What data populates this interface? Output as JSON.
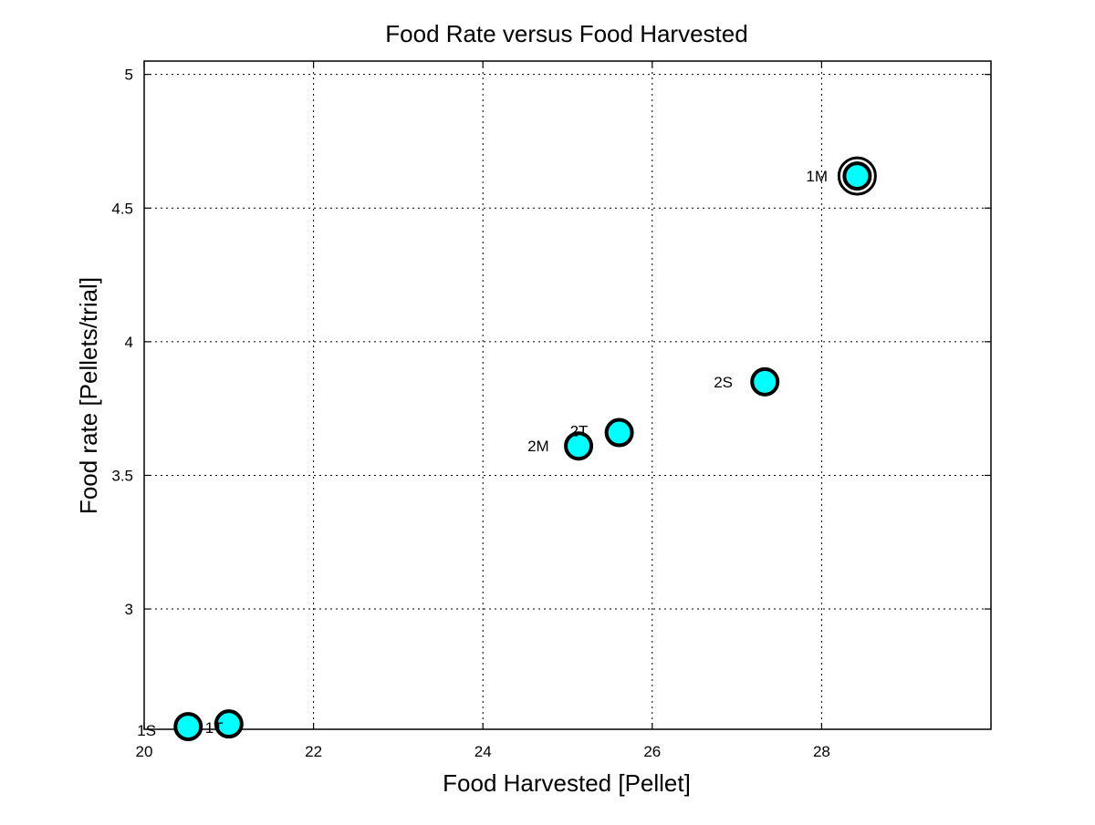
{
  "chart_data": {
    "type": "scatter",
    "title": "Food Rate versus Food Harvested",
    "xlabel": "Food Harvested [Pellet]",
    "ylabel": "Food rate [Pellets/trial]",
    "xlim": [
      20,
      30
    ],
    "ylim": [
      2.55,
      5.05
    ],
    "xticks": [
      20,
      22,
      24,
      26,
      28
    ],
    "xtick_labels": [
      "20",
      "22",
      "24",
      "26",
      "28"
    ],
    "yticks": [
      3,
      3.5,
      4,
      4.5,
      5
    ],
    "ytick_labels": [
      "3",
      "3.5",
      "4",
      "4.5",
      "5"
    ],
    "grid": true,
    "marker_fill": "#00ffff",
    "marker_edge": "#000000",
    "points": [
      {
        "label": "1S",
        "x": 20.52,
        "y": 2.56,
        "highlight": false
      },
      {
        "label": "1T",
        "x": 21.0,
        "y": 2.57,
        "highlight": false
      },
      {
        "label": "2M",
        "x": 25.13,
        "y": 3.61,
        "highlight": false
      },
      {
        "label": "2T",
        "x": 25.61,
        "y": 3.66,
        "highlight": false
      },
      {
        "label": "2S",
        "x": 27.33,
        "y": 3.85,
        "highlight": false
      },
      {
        "label": "1M",
        "x": 28.42,
        "y": 4.62,
        "highlight": true
      }
    ]
  }
}
